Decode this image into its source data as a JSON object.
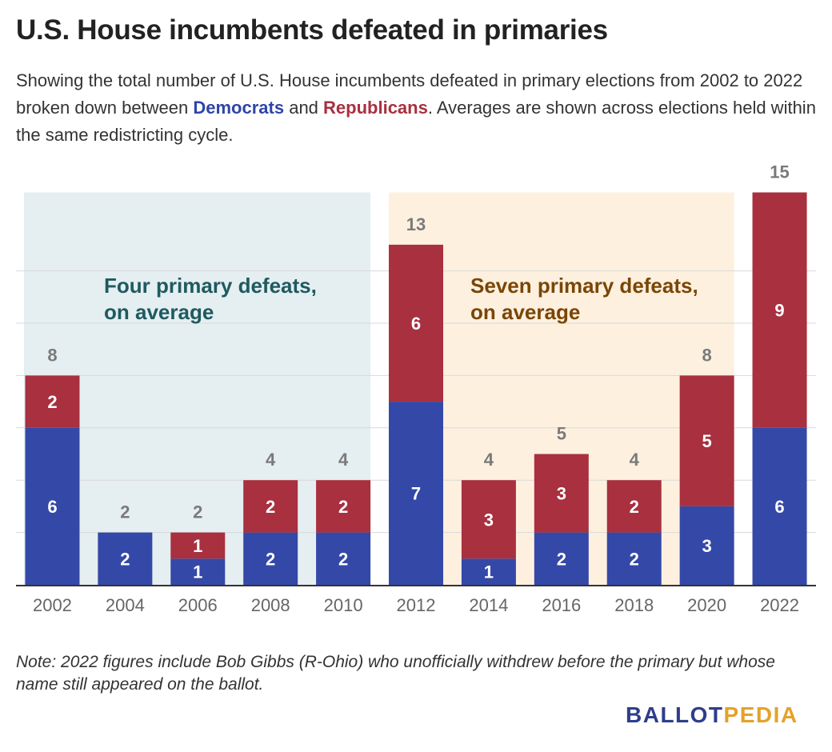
{
  "title": "U.S. House incumbents defeated in primaries",
  "subtitle": {
    "part1": "Showing the total number of U.S. House incumbents defeated in primary elections from 2002 to 2022 broken down between ",
    "democrats": "Democrats",
    "part2": " and ",
    "republicans": "Republicans",
    "part3": ". Averages are shown across elections held within the same redistricting cycle."
  },
  "colors": {
    "democrat": "#3448a8",
    "republican": "#a8303f",
    "cycle1_bg": "#e5eef1",
    "cycle1_text": "#1e5a5f",
    "cycle2_bg": "#fdf0df",
    "cycle2_text": "#7a4606",
    "total_label": "#7a7a7a"
  },
  "chart_data": {
    "type": "bar",
    "stacked": true,
    "categories": [
      "2002",
      "2004",
      "2006",
      "2008",
      "2010",
      "2012",
      "2014",
      "2016",
      "2018",
      "2020",
      "2022"
    ],
    "series": [
      {
        "name": "Democrats",
        "values": [
          6,
          2,
          1,
          2,
          2,
          7,
          1,
          2,
          2,
          3,
          6
        ]
      },
      {
        "name": "Republicans",
        "values": [
          2,
          0,
          1,
          2,
          2,
          6,
          3,
          3,
          2,
          5,
          9
        ]
      }
    ],
    "totals": [
      8,
      2,
      2,
      4,
      4,
      13,
      4,
      5,
      4,
      8,
      15
    ],
    "ylim": [
      0,
      15
    ],
    "grid": true,
    "annotations": [
      {
        "line1": "Four primary defeats,",
        "line2": "on average",
        "from": "2002",
        "to": "2010"
      },
      {
        "line1": "Seven primary defeats,",
        "line2": "on average",
        "from": "2012",
        "to": "2020"
      }
    ]
  },
  "note": "Note: 2022 figures include Bob Gibbs (R-Ohio) who unofficially withdrew before the primary but whose name still appeared on the ballot.",
  "logo": {
    "part1": "BALLOT",
    "part2": "PEDIA"
  }
}
